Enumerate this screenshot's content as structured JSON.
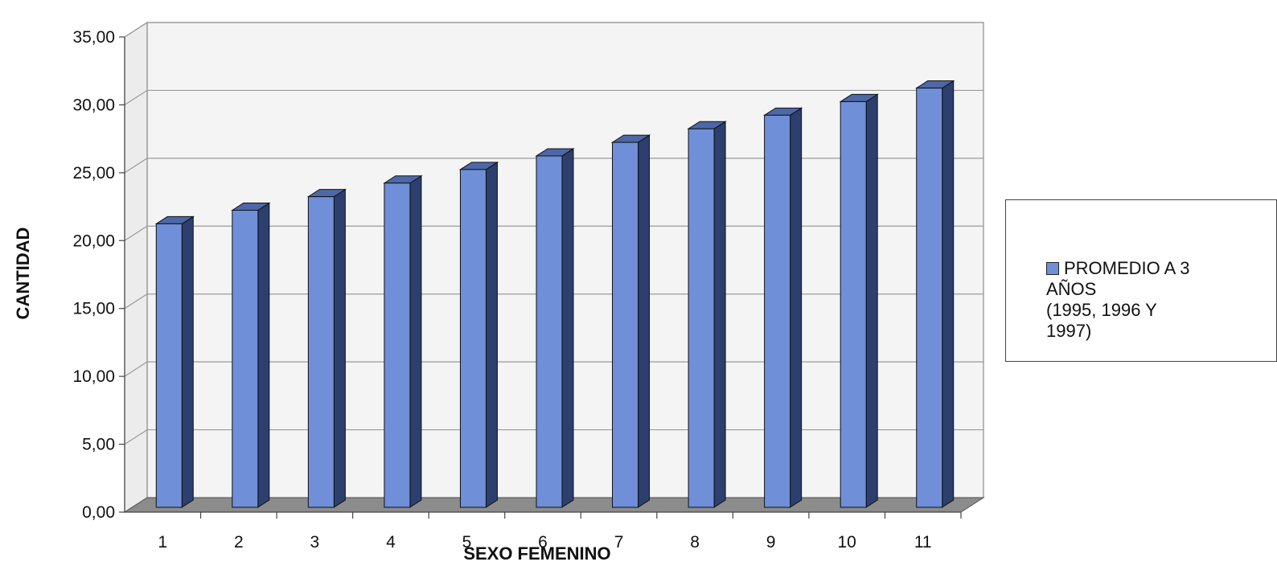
{
  "chart_data": {
    "type": "bar",
    "title": "",
    "xlabel": "SEXO FEMENINO",
    "ylabel": "CANTIDAD",
    "categories": [
      "1",
      "2",
      "3",
      "4",
      "5",
      "6",
      "7",
      "8",
      "9",
      "10",
      "11"
    ],
    "series": [
      {
        "name": "PROMEDIO A 3 AÑOS (1995, 1996 Y 1997)",
        "values": [
          21,
          22,
          23,
          24,
          25,
          26,
          27,
          28,
          29,
          30,
          31
        ]
      }
    ],
    "ylim": [
      0,
      35
    ],
    "yticks": [
      "0,00",
      "5,00",
      "10,00",
      "15,00",
      "20,00",
      "25,00",
      "30,00",
      "35,00"
    ],
    "grid": true,
    "legend_position": "right",
    "style": "3d-column"
  },
  "legend": {
    "label": "PROMEDIO A 3\nAÑOS\n(1995, 1996 Y\n1997)"
  },
  "colors": {
    "bar_front": "#6f8fd9",
    "bar_side": "#2c3f6e",
    "bar_top": "#4d68a8",
    "floor": "#8c8c8c",
    "wall": "#f4f4f4",
    "grid": "#9a9a9a"
  }
}
